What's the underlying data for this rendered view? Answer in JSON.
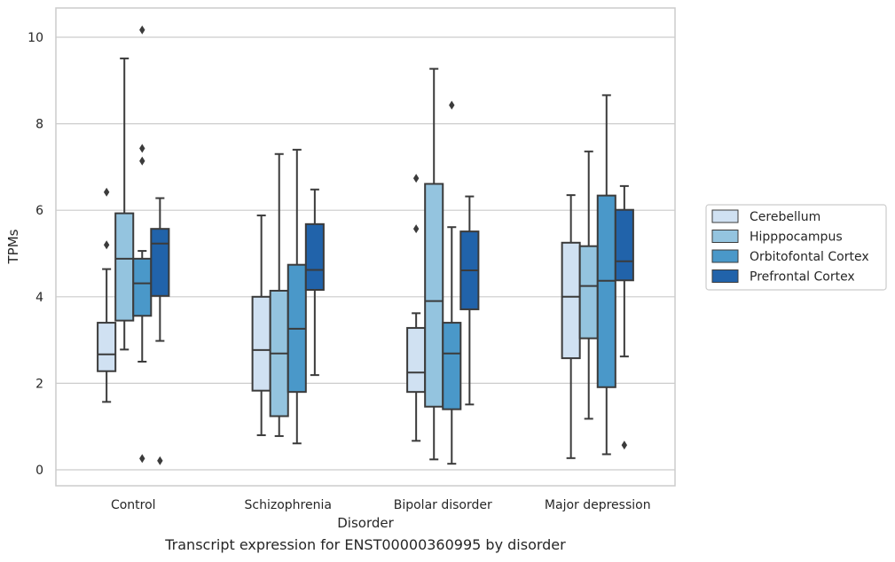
{
  "caption": "Transcript expression for ENST00000360995 by disorder",
  "chart_data": {
    "type": "box",
    "xlabel": "Disorder",
    "ylabel": "TPMs",
    "ylim": [
      -0.35,
      10.65
    ],
    "yticks": [
      0,
      2,
      4,
      6,
      8,
      10
    ],
    "grid": "horizontal",
    "legend_position": "right",
    "categories": [
      "Control",
      "Schizophrenia",
      "Bipolar disorder",
      "Major depression"
    ],
    "series": [
      {
        "name": "Cerebellum",
        "color": "#d0e1f2",
        "boxes": [
          {
            "whisker_low": 1.57,
            "q1": 2.28,
            "median": 2.67,
            "q3": 3.4,
            "whisker_high": 4.64,
            "outliers": [
              5.2,
              6.42
            ]
          },
          {
            "whisker_low": 0.8,
            "q1": 1.83,
            "median": 2.77,
            "q3": 4.0,
            "whisker_high": 5.88,
            "outliers": []
          },
          {
            "whisker_low": 0.67,
            "q1": 1.8,
            "median": 2.25,
            "q3": 3.28,
            "whisker_high": 3.62,
            "outliers": [
              5.57,
              6.74
            ]
          },
          {
            "whisker_low": 0.27,
            "q1": 2.58,
            "median": 4.0,
            "q3": 5.25,
            "whisker_high": 6.35,
            "outliers": []
          }
        ]
      },
      {
        "name": "Hipppocampus",
        "color": "#94c4df",
        "boxes": [
          {
            "whisker_low": 2.78,
            "q1": 3.45,
            "median": 4.88,
            "q3": 5.93,
            "whisker_high": 9.51,
            "outliers": []
          },
          {
            "whisker_low": 0.78,
            "q1": 1.24,
            "median": 2.69,
            "q3": 4.14,
            "whisker_high": 7.3,
            "outliers": []
          },
          {
            "whisker_low": 0.24,
            "q1": 1.46,
            "median": 3.9,
            "q3": 6.61,
            "whisker_high": 9.27,
            "outliers": []
          },
          {
            "whisker_low": 1.18,
            "q1": 3.04,
            "median": 4.25,
            "q3": 5.17,
            "whisker_high": 7.36,
            "outliers": []
          }
        ]
      },
      {
        "name": "Orbitofontal Cortex",
        "color": "#4a98c9",
        "boxes": [
          {
            "whisker_low": 2.5,
            "q1": 3.56,
            "median": 4.31,
            "q3": 4.88,
            "whisker_high": 5.06,
            "outliers": [
              0.26,
              7.14,
              7.43,
              10.17
            ]
          },
          {
            "whisker_low": 0.61,
            "q1": 1.8,
            "median": 3.26,
            "q3": 4.74,
            "whisker_high": 7.4,
            "outliers": []
          },
          {
            "whisker_low": 0.14,
            "q1": 1.4,
            "median": 2.69,
            "q3": 3.4,
            "whisker_high": 5.61,
            "outliers": [
              8.43
            ]
          },
          {
            "whisker_low": 0.36,
            "q1": 1.91,
            "median": 4.37,
            "q3": 6.34,
            "whisker_high": 8.66,
            "outliers": []
          }
        ]
      },
      {
        "name": "Prefrontal Cortex",
        "color": "#2163aa",
        "boxes": [
          {
            "whisker_low": 2.98,
            "q1": 4.02,
            "median": 5.23,
            "q3": 5.57,
            "whisker_high": 6.28,
            "outliers": [
              0.21
            ]
          },
          {
            "whisker_low": 2.19,
            "q1": 4.16,
            "median": 4.62,
            "q3": 5.68,
            "whisker_high": 6.48,
            "outliers": []
          },
          {
            "whisker_low": 1.51,
            "q1": 3.71,
            "median": 4.61,
            "q3": 5.51,
            "whisker_high": 6.32,
            "outliers": []
          },
          {
            "whisker_low": 2.62,
            "q1": 4.38,
            "median": 4.82,
            "q3": 6.01,
            "whisker_high": 6.56,
            "outliers": [
              0.57
            ]
          }
        ]
      }
    ]
  }
}
